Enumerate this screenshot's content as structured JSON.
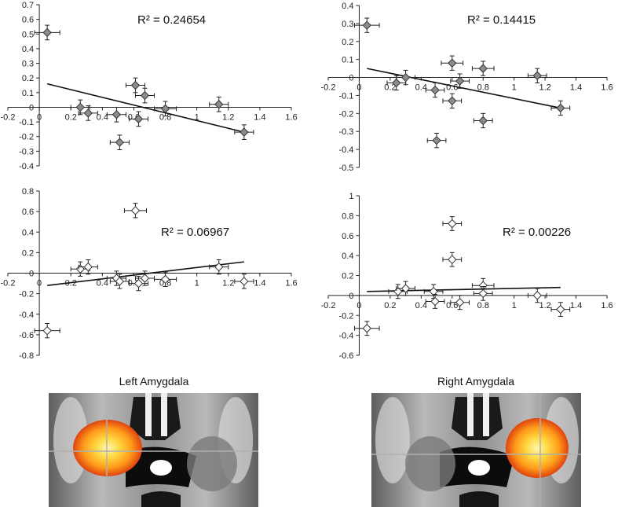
{
  "chart_data": [
    {
      "type": "scatter",
      "xlim": [
        -0.2,
        1.6
      ],
      "ylim": [
        -0.4,
        0.7
      ],
      "xticks": [
        -0.2,
        0,
        0.2,
        0.4,
        0.6,
        0.8,
        1,
        1.2,
        1.4,
        1.6
      ],
      "yticks": [
        -0.4,
        -0.3,
        -0.2,
        -0.1,
        0,
        0.1,
        0.2,
        0.3,
        0.4,
        0.5,
        0.6,
        0.7
      ],
      "r2_label": "R² = 0.24654",
      "marker_fill": "#8c8c8c",
      "points": [
        {
          "x": 0.05,
          "y": 0.51,
          "xerr": 0.08,
          "yerr": 0.05
        },
        {
          "x": 0.26,
          "y": 0.0,
          "xerr": 0.06,
          "yerr": 0.05
        },
        {
          "x": 0.31,
          "y": -0.04,
          "xerr": 0.06,
          "yerr": 0.05
        },
        {
          "x": 0.49,
          "y": -0.05,
          "xerr": 0.06,
          "yerr": 0.05
        },
        {
          "x": 0.51,
          "y": -0.24,
          "xerr": 0.06,
          "yerr": 0.05
        },
        {
          "x": 0.61,
          "y": 0.15,
          "xerr": 0.06,
          "yerr": 0.05
        },
        {
          "x": 0.63,
          "y": -0.08,
          "xerr": 0.06,
          "yerr": 0.05
        },
        {
          "x": 0.67,
          "y": 0.08,
          "xerr": 0.06,
          "yerr": 0.05
        },
        {
          "x": 0.8,
          "y": -0.01,
          "xerr": 0.07,
          "yerr": 0.05
        },
        {
          "x": 1.14,
          "y": 0.02,
          "xerr": 0.06,
          "yerr": 0.05
        },
        {
          "x": 1.3,
          "y": -0.17,
          "xerr": 0.06,
          "yerr": 0.05
        }
      ],
      "trendline": {
        "x": [
          0.05,
          1.3
        ],
        "y": [
          0.16,
          -0.17
        ]
      }
    },
    {
      "type": "scatter",
      "xlim": [
        -0.2,
        1.6
      ],
      "ylim": [
        -0.5,
        0.4
      ],
      "xticks": [
        -0.2,
        0,
        0.2,
        0.4,
        0.6,
        0.8,
        1,
        1.2,
        1.4,
        1.6
      ],
      "yticks": [
        -0.5,
        -0.4,
        -0.3,
        -0.2,
        -0.1,
        0,
        0.1,
        0.2,
        0.3,
        0.4
      ],
      "r2_label": "R² = 0.14415",
      "marker_fill": "#8c8c8c",
      "points": [
        {
          "x": 0.05,
          "y": 0.29,
          "xerr": 0.08,
          "yerr": 0.04
        },
        {
          "x": 0.24,
          "y": -0.03,
          "xerr": 0.06,
          "yerr": 0.04
        },
        {
          "x": 0.3,
          "y": 0.0,
          "xerr": 0.06,
          "yerr": 0.04
        },
        {
          "x": 0.49,
          "y": -0.07,
          "xerr": 0.06,
          "yerr": 0.04
        },
        {
          "x": 0.5,
          "y": -0.35,
          "xerr": 0.06,
          "yerr": 0.04
        },
        {
          "x": 0.6,
          "y": 0.08,
          "xerr": 0.07,
          "yerr": 0.04
        },
        {
          "x": 0.6,
          "y": -0.13,
          "xerr": 0.06,
          "yerr": 0.04
        },
        {
          "x": 0.65,
          "y": -0.02,
          "xerr": 0.06,
          "yerr": 0.04
        },
        {
          "x": 0.8,
          "y": 0.05,
          "xerr": 0.07,
          "yerr": 0.04
        },
        {
          "x": 0.8,
          "y": -0.24,
          "xerr": 0.06,
          "yerr": 0.04
        },
        {
          "x": 1.15,
          "y": 0.01,
          "xerr": 0.06,
          "yerr": 0.04
        },
        {
          "x": 1.3,
          "y": -0.17,
          "xerr": 0.06,
          "yerr": 0.04
        }
      ],
      "trendline": {
        "x": [
          0.05,
          1.3
        ],
        "y": [
          0.05,
          -0.17
        ]
      }
    },
    {
      "type": "scatter",
      "xlim": [
        -0.2,
        1.6
      ],
      "ylim": [
        -0.8,
        0.8
      ],
      "xticks": [
        -0.2,
        0,
        0.2,
        0.4,
        0.6,
        0.8,
        1,
        1.2,
        1.4,
        1.6
      ],
      "yticks": [
        -0.8,
        -0.6,
        -0.4,
        -0.2,
        0,
        0.2,
        0.4,
        0.6,
        0.8
      ],
      "r2_label": "R² = 0.06967",
      "marker_fill": "#ffffff",
      "points": [
        {
          "x": 0.05,
          "y": -0.56,
          "xerr": 0.08,
          "yerr": 0.07
        },
        {
          "x": 0.26,
          "y": 0.04,
          "xerr": 0.06,
          "yerr": 0.07
        },
        {
          "x": 0.31,
          "y": 0.06,
          "xerr": 0.06,
          "yerr": 0.07
        },
        {
          "x": 0.49,
          "y": -0.05,
          "xerr": 0.06,
          "yerr": 0.07
        },
        {
          "x": 0.51,
          "y": -0.08,
          "xerr": 0.06,
          "yerr": 0.07
        },
        {
          "x": 0.61,
          "y": 0.61,
          "xerr": 0.07,
          "yerr": 0.07
        },
        {
          "x": 0.63,
          "y": -0.1,
          "xerr": 0.06,
          "yerr": 0.07
        },
        {
          "x": 0.67,
          "y": -0.05,
          "xerr": 0.06,
          "yerr": 0.07
        },
        {
          "x": 0.8,
          "y": -0.06,
          "xerr": 0.07,
          "yerr": 0.07
        },
        {
          "x": 1.14,
          "y": 0.06,
          "xerr": 0.06,
          "yerr": 0.07
        },
        {
          "x": 1.3,
          "y": -0.08,
          "xerr": 0.06,
          "yerr": 0.07
        }
      ],
      "trendline": {
        "x": [
          0.05,
          1.3
        ],
        "y": [
          -0.12,
          0.11
        ]
      }
    },
    {
      "type": "scatter",
      "xlim": [
        -0.2,
        1.6
      ],
      "ylim": [
        -0.6,
        1.0
      ],
      "xticks": [
        -0.2,
        0,
        0.2,
        0.4,
        0.6,
        0.8,
        1,
        1.2,
        1.4,
        1.6
      ],
      "yticks": [
        -0.6,
        -0.4,
        -0.2,
        0,
        0.2,
        0.4,
        0.6,
        0.8,
        1
      ],
      "r2_label": "R² = 0.00226",
      "marker_fill": "#ffffff",
      "points": [
        {
          "x": 0.05,
          "y": -0.33,
          "xerr": 0.08,
          "yerr": 0.07
        },
        {
          "x": 0.25,
          "y": 0.04,
          "xerr": 0.06,
          "yerr": 0.07
        },
        {
          "x": 0.3,
          "y": 0.07,
          "xerr": 0.06,
          "yerr": 0.07
        },
        {
          "x": 0.48,
          "y": 0.04,
          "xerr": 0.06,
          "yerr": 0.07
        },
        {
          "x": 0.49,
          "y": -0.06,
          "xerr": 0.06,
          "yerr": 0.07
        },
        {
          "x": 0.6,
          "y": 0.72,
          "xerr": 0.06,
          "yerr": 0.07
        },
        {
          "x": 0.6,
          "y": 0.36,
          "xerr": 0.06,
          "yerr": 0.07
        },
        {
          "x": 0.65,
          "y": -0.07,
          "xerr": 0.06,
          "yerr": 0.07
        },
        {
          "x": 0.8,
          "y": 0.1,
          "xerr": 0.07,
          "yerr": 0.07
        },
        {
          "x": 0.8,
          "y": 0.02,
          "xerr": 0.06,
          "yerr": 0.07
        },
        {
          "x": 1.15,
          "y": 0.0,
          "xerr": 0.06,
          "yerr": 0.07
        },
        {
          "x": 1.3,
          "y": -0.14,
          "xerr": 0.06,
          "yerr": 0.07
        }
      ],
      "trendline": {
        "x": [
          0.05,
          1.3
        ],
        "y": [
          0.04,
          0.08
        ]
      }
    }
  ],
  "images": [
    {
      "caption": "Left Amygdala",
      "blob_side": "left"
    },
    {
      "caption": "Right Amygdala",
      "blob_side": "right"
    }
  ],
  "colors": {
    "axis": "#222222",
    "trendline": "#111111",
    "marker_stroke": "#333333"
  }
}
